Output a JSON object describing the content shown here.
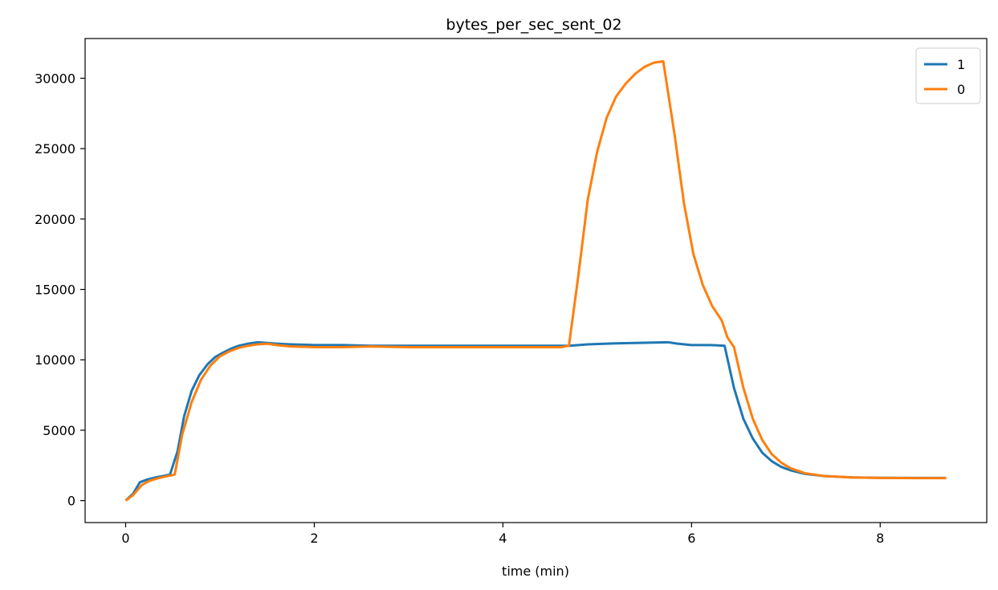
{
  "chart_data": {
    "type": "line",
    "title": "bytes_per_sec_sent_02",
    "xlabel": "time (min)",
    "ylabel": "",
    "xlim": [
      -0.43,
      9.13
    ],
    "ylim": [
      -1560,
      32820
    ],
    "xticks": [
      0,
      2,
      4,
      6,
      8
    ],
    "yticks": [
      0,
      5000,
      10000,
      15000,
      20000,
      25000,
      30000
    ],
    "grid": false,
    "legend_position": "top-right",
    "series": [
      {
        "name": "1",
        "color": "#1f77b4",
        "x": [
          0,
          0.08,
          0.15,
          0.23,
          0.32,
          0.4,
          0.47,
          0.55,
          0.62,
          0.7,
          0.78,
          0.87,
          0.95,
          1.03,
          1.12,
          1.2,
          1.3,
          1.4,
          1.5,
          1.6,
          1.75,
          2.0,
          2.3,
          2.6,
          3.0,
          3.5,
          4.0,
          4.4,
          4.7,
          4.9,
          5.1,
          5.4,
          5.75,
          5.85,
          6.0,
          6.2,
          6.35,
          6.45,
          6.55,
          6.65,
          6.75,
          6.85,
          6.95,
          7.05,
          7.2,
          7.4,
          7.7,
          8.0,
          8.4,
          8.7
        ],
        "y": [
          0,
          500,
          1300,
          1500,
          1650,
          1750,
          1850,
          3500,
          6000,
          7800,
          8900,
          9700,
          10200,
          10500,
          10800,
          11000,
          11150,
          11250,
          11200,
          11150,
          11100,
          11050,
          11050,
          11000,
          11000,
          11000,
          11000,
          11000,
          11000,
          11100,
          11150,
          11200,
          11250,
          11150,
          11050,
          11050,
          11000,
          8000,
          5800,
          4400,
          3400,
          2800,
          2400,
          2150,
          1900,
          1750,
          1650,
          1620,
          1610,
          1610
        ]
      },
      {
        "name": "0",
        "color": "#ff7f0e",
        "x": [
          0,
          0.08,
          0.17,
          0.25,
          0.35,
          0.45,
          0.52,
          0.6,
          0.7,
          0.8,
          0.9,
          1.0,
          1.1,
          1.2,
          1.3,
          1.4,
          1.5,
          1.6,
          1.75,
          2.0,
          2.3,
          2.6,
          3.0,
          3.5,
          4.0,
          4.4,
          4.62,
          4.7,
          4.8,
          4.9,
          5.0,
          5.1,
          5.2,
          5.3,
          5.4,
          5.5,
          5.6,
          5.7,
          5.82,
          5.92,
          6.02,
          6.12,
          6.22,
          6.32,
          6.38,
          6.45,
          6.55,
          6.65,
          6.75,
          6.85,
          6.95,
          7.05,
          7.2,
          7.4,
          7.7,
          8.0,
          8.4,
          8.7
        ],
        "y": [
          0,
          400,
          1100,
          1400,
          1600,
          1750,
          1850,
          4700,
          7000,
          8600,
          9600,
          10250,
          10600,
          10850,
          11000,
          11100,
          11150,
          11050,
          10950,
          10900,
          10900,
          10950,
          10900,
          10900,
          10900,
          10900,
          10900,
          11000,
          16000,
          21400,
          24800,
          27200,
          28700,
          29600,
          30300,
          30800,
          31100,
          31200,
          26000,
          21100,
          17500,
          15300,
          13800,
          12800,
          11600,
          10900,
          8000,
          5800,
          4300,
          3300,
          2700,
          2300,
          1950,
          1750,
          1650,
          1610,
          1600,
          1600
        ]
      }
    ]
  }
}
